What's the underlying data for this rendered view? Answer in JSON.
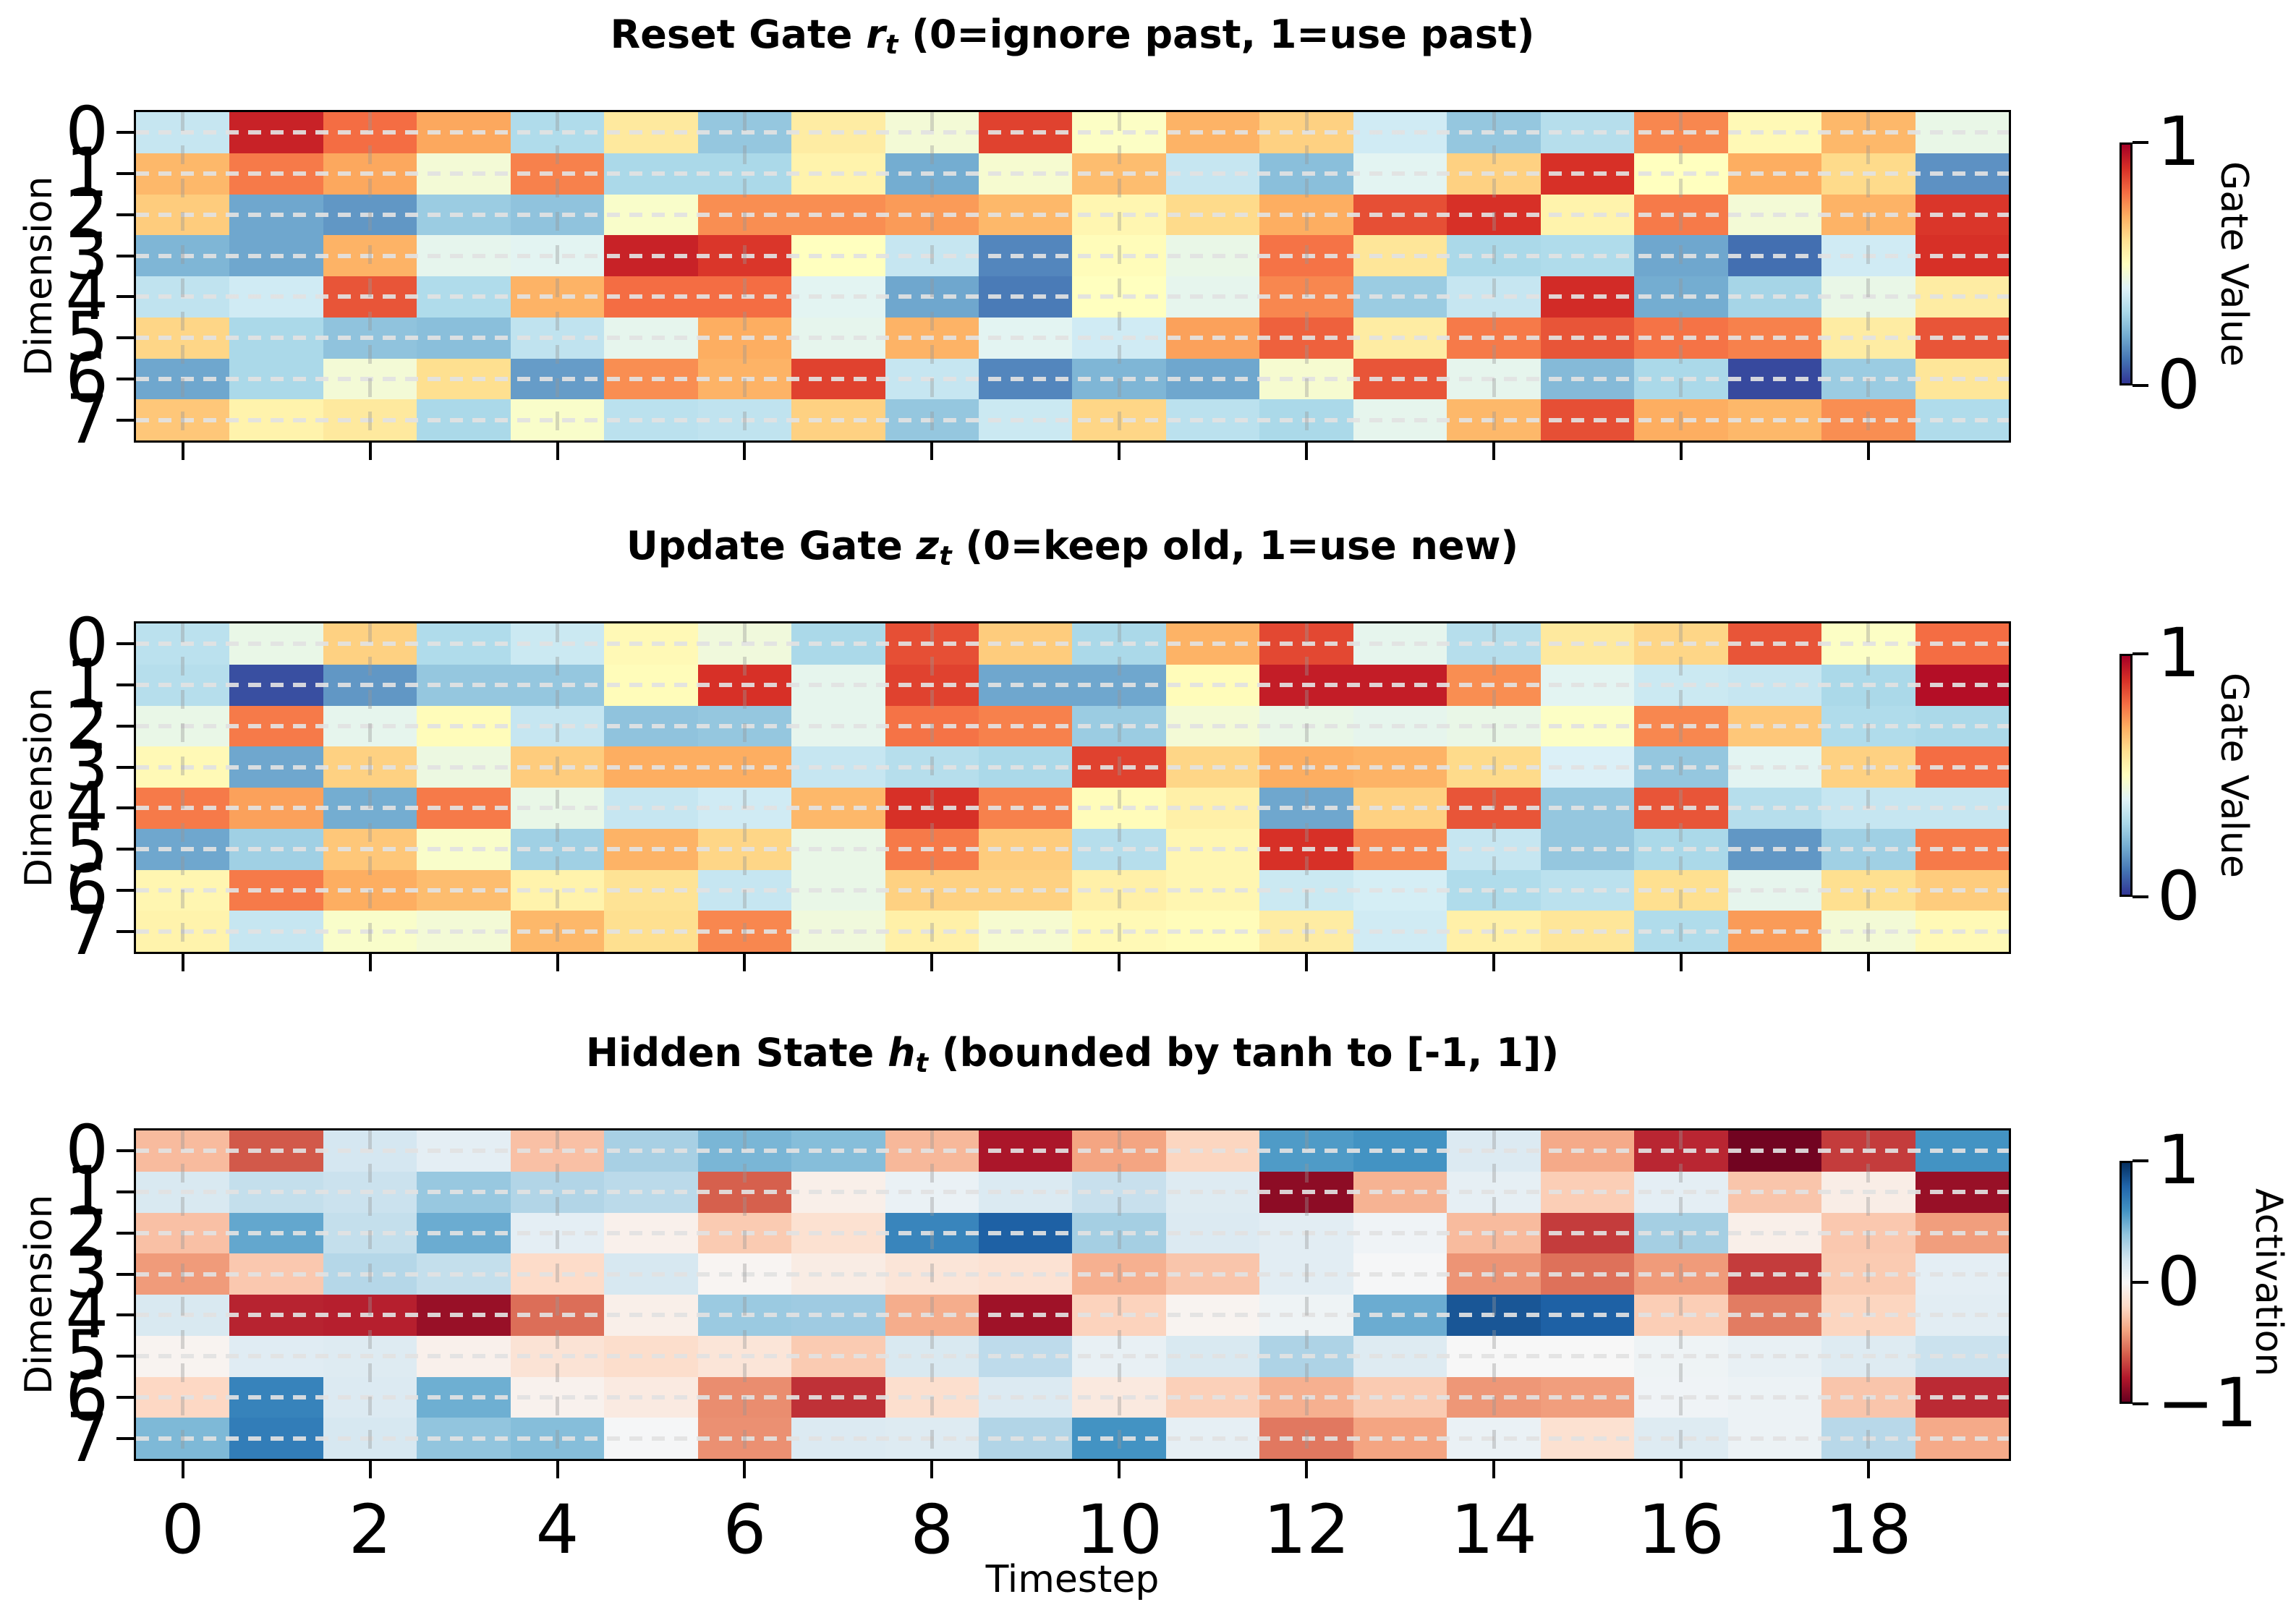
{
  "figure": {
    "background": "#ffffff"
  },
  "axis": {
    "xlabel": "Timestep",
    "ylabel": "Dimension",
    "x_ticks": [
      "0",
      "2",
      "4",
      "6",
      "8",
      "10",
      "12",
      "14",
      "16",
      "18"
    ],
    "x_tick_cols": [
      0,
      2,
      4,
      6,
      8,
      10,
      12,
      14,
      16,
      18
    ],
    "y_ticks": [
      "0",
      "1",
      "2",
      "3",
      "4",
      "5",
      "6",
      "7"
    ],
    "grid": "dashed",
    "tick_color": "#000000"
  },
  "colormaps": {
    "gate": [
      "#313695",
      "#4575b4",
      "#74add1",
      "#abd9e9",
      "#e0f3f8",
      "#ffffbf",
      "#fee090",
      "#fdae61",
      "#f46d43",
      "#d73027",
      "#a50026"
    ],
    "activation": [
      "#67001f",
      "#b2182b",
      "#d6604d",
      "#f4a582",
      "#fddbc7",
      "#f7f7f7",
      "#d1e5f0",
      "#92c5de",
      "#4393c3",
      "#2166ac",
      "#053061"
    ]
  },
  "chart_data": [
    {
      "type": "heatmap",
      "title_prefix": "Reset Gate ",
      "title_var": "r",
      "title_sub": "t",
      "title_suffix": " (0=ignore past, 1=use past)",
      "rows": 8,
      "cols": 20,
      "colormap": "gate",
      "vmin": 0,
      "vmax": 1,
      "colorbar": {
        "label": "Gate Value",
        "ticks": [
          {
            "label": "1",
            "pos": 1
          },
          {
            "label": "0",
            "pos": 0
          }
        ]
      },
      "values": [
        [
          0.35,
          0.93,
          0.8,
          0.71,
          0.31,
          0.57,
          0.26,
          0.56,
          0.46,
          0.87,
          0.49,
          0.69,
          0.63,
          0.37,
          0.26,
          0.32,
          0.76,
          0.52,
          0.68,
          0.43
        ],
        [
          0.68,
          0.78,
          0.71,
          0.46,
          0.77,
          0.3,
          0.3,
          0.54,
          0.2,
          0.47,
          0.67,
          0.35,
          0.24,
          0.41,
          0.63,
          0.9,
          0.5,
          0.7,
          0.61,
          0.15
        ],
        [
          0.64,
          0.19,
          0.16,
          0.27,
          0.25,
          0.48,
          0.75,
          0.75,
          0.73,
          0.68,
          0.53,
          0.61,
          0.7,
          0.85,
          0.9,
          0.54,
          0.78,
          0.46,
          0.69,
          0.89
        ],
        [
          0.22,
          0.19,
          0.69,
          0.42,
          0.41,
          0.93,
          0.89,
          0.5,
          0.35,
          0.13,
          0.51,
          0.43,
          0.79,
          0.58,
          0.3,
          0.31,
          0.19,
          0.09,
          0.37,
          0.9
        ],
        [
          0.34,
          0.37,
          0.84,
          0.31,
          0.69,
          0.8,
          0.8,
          0.41,
          0.19,
          0.11,
          0.5,
          0.42,
          0.76,
          0.27,
          0.35,
          0.91,
          0.2,
          0.29,
          0.43,
          0.56
        ],
        [
          0.62,
          0.3,
          0.25,
          0.24,
          0.34,
          0.42,
          0.7,
          0.42,
          0.69,
          0.41,
          0.37,
          0.72,
          0.82,
          0.56,
          0.78,
          0.84,
          0.79,
          0.77,
          0.56,
          0.84
        ],
        [
          0.19,
          0.3,
          0.46,
          0.6,
          0.17,
          0.75,
          0.69,
          0.87,
          0.35,
          0.13,
          0.22,
          0.19,
          0.47,
          0.84,
          0.42,
          0.23,
          0.3,
          0.03,
          0.27,
          0.58
        ],
        [
          0.65,
          0.54,
          0.57,
          0.3,
          0.48,
          0.33,
          0.34,
          0.63,
          0.26,
          0.36,
          0.62,
          0.33,
          0.3,
          0.42,
          0.68,
          0.85,
          0.7,
          0.68,
          0.75,
          0.31
        ]
      ]
    },
    {
      "type": "heatmap",
      "title_prefix": "Update Gate ",
      "title_var": "z",
      "title_sub": "t",
      "title_suffix": " (0=keep old, 1=use new)",
      "rows": 8,
      "cols": 20,
      "colormap": "gate",
      "vmin": 0,
      "vmax": 1,
      "colorbar": {
        "label": "Gate Value",
        "ticks": [
          {
            "label": "1",
            "pos": 1
          },
          {
            "label": "0",
            "pos": 0
          }
        ]
      },
      "values": [
        [
          0.33,
          0.43,
          0.63,
          0.31,
          0.36,
          0.52,
          0.45,
          0.3,
          0.85,
          0.64,
          0.3,
          0.69,
          0.86,
          0.42,
          0.32,
          0.57,
          0.62,
          0.84,
          0.49,
          0.8
        ],
        [
          0.32,
          0.04,
          0.16,
          0.26,
          0.26,
          0.51,
          0.9,
          0.42,
          0.87,
          0.19,
          0.19,
          0.51,
          0.94,
          0.94,
          0.75,
          0.41,
          0.36,
          0.35,
          0.3,
          0.97
        ],
        [
          0.43,
          0.78,
          0.42,
          0.51,
          0.35,
          0.25,
          0.26,
          0.42,
          0.79,
          0.77,
          0.27,
          0.46,
          0.43,
          0.42,
          0.43,
          0.49,
          0.76,
          0.65,
          0.31,
          0.3
        ],
        [
          0.52,
          0.19,
          0.63,
          0.44,
          0.64,
          0.7,
          0.7,
          0.35,
          0.32,
          0.3,
          0.87,
          0.62,
          0.7,
          0.69,
          0.61,
          0.39,
          0.26,
          0.41,
          0.63,
          0.8
        ],
        [
          0.78,
          0.72,
          0.2,
          0.78,
          0.43,
          0.35,
          0.37,
          0.68,
          0.9,
          0.77,
          0.51,
          0.55,
          0.19,
          0.63,
          0.84,
          0.26,
          0.84,
          0.32,
          0.35,
          0.35
        ],
        [
          0.19,
          0.28,
          0.65,
          0.48,
          0.28,
          0.69,
          0.62,
          0.43,
          0.78,
          0.64,
          0.32,
          0.53,
          0.9,
          0.76,
          0.35,
          0.26,
          0.3,
          0.16,
          0.28,
          0.78
        ],
        [
          0.53,
          0.78,
          0.7,
          0.67,
          0.54,
          0.59,
          0.35,
          0.43,
          0.63,
          0.63,
          0.55,
          0.53,
          0.36,
          0.38,
          0.31,
          0.33,
          0.6,
          0.42,
          0.6,
          0.64
        ],
        [
          0.54,
          0.35,
          0.48,
          0.46,
          0.68,
          0.6,
          0.76,
          0.45,
          0.55,
          0.47,
          0.52,
          0.51,
          0.56,
          0.37,
          0.55,
          0.58,
          0.31,
          0.73,
          0.46,
          0.52
        ]
      ]
    },
    {
      "type": "heatmap",
      "title_prefix": "Hidden State ",
      "title_var": "h",
      "title_sub": "t",
      "title_suffix": " (bounded by tanh to [-1, 1])",
      "rows": 8,
      "cols": 20,
      "colormap": "activation",
      "vmin": -1,
      "vmax": 1,
      "colorbar": {
        "label": "Activation",
        "ticks": [
          {
            "label": "1",
            "pos": 1
          },
          {
            "label": "0",
            "pos": 0.5
          },
          {
            "label": "−1",
            "pos": 0
          }
        ]
      },
      "values": [
        [
          -0.32,
          -0.62,
          0.18,
          0.1,
          -0.3,
          0.33,
          0.46,
          0.43,
          -0.33,
          -0.82,
          -0.4,
          -0.22,
          0.57,
          0.6,
          0.14,
          -0.38,
          -0.76,
          -0.97,
          -0.7,
          0.6
        ],
        [
          0.16,
          0.24,
          0.22,
          0.38,
          0.3,
          0.27,
          -0.6,
          -0.06,
          0.07,
          0.15,
          0.23,
          0.13,
          -0.9,
          -0.35,
          0.09,
          -0.25,
          0.1,
          -0.28,
          -0.07,
          -0.87
        ],
        [
          -0.3,
          0.52,
          0.24,
          0.5,
          0.1,
          -0.05,
          -0.26,
          -0.16,
          0.66,
          0.82,
          0.34,
          0.14,
          0.11,
          0.04,
          -0.32,
          -0.7,
          0.34,
          -0.06,
          -0.27,
          -0.42
        ],
        [
          -0.43,
          -0.27,
          0.29,
          0.24,
          -0.19,
          0.17,
          -0.02,
          -0.08,
          -0.13,
          -0.15,
          -0.36,
          -0.28,
          0.11,
          0.01,
          -0.45,
          -0.55,
          -0.43,
          -0.7,
          -0.26,
          0.1
        ],
        [
          0.16,
          -0.77,
          -0.78,
          -0.87,
          -0.56,
          -0.06,
          0.37,
          0.36,
          -0.37,
          -0.85,
          -0.23,
          -0.03,
          0.05,
          0.5,
          0.86,
          0.82,
          -0.25,
          -0.52,
          -0.22,
          0.11
        ],
        [
          -0.03,
          0.12,
          0.13,
          -0.05,
          -0.14,
          -0.18,
          -0.13,
          -0.26,
          0.16,
          0.26,
          0.08,
          0.16,
          0.31,
          0.13,
          0.0,
          0.0,
          0.05,
          0.08,
          0.13,
          0.22
        ],
        [
          -0.21,
          0.67,
          0.14,
          0.49,
          -0.04,
          -0.09,
          -0.47,
          -0.73,
          -0.17,
          0.14,
          -0.1,
          -0.24,
          -0.36,
          -0.26,
          -0.44,
          -0.42,
          0.04,
          0.06,
          -0.28,
          -0.75
        ],
        [
          0.45,
          0.7,
          0.17,
          0.4,
          0.43,
          0.01,
          -0.46,
          0.14,
          0.13,
          0.3,
          0.6,
          0.09,
          -0.53,
          -0.4,
          0.07,
          -0.16,
          0.13,
          0.06,
          0.28,
          -0.38
        ]
      ]
    }
  ]
}
